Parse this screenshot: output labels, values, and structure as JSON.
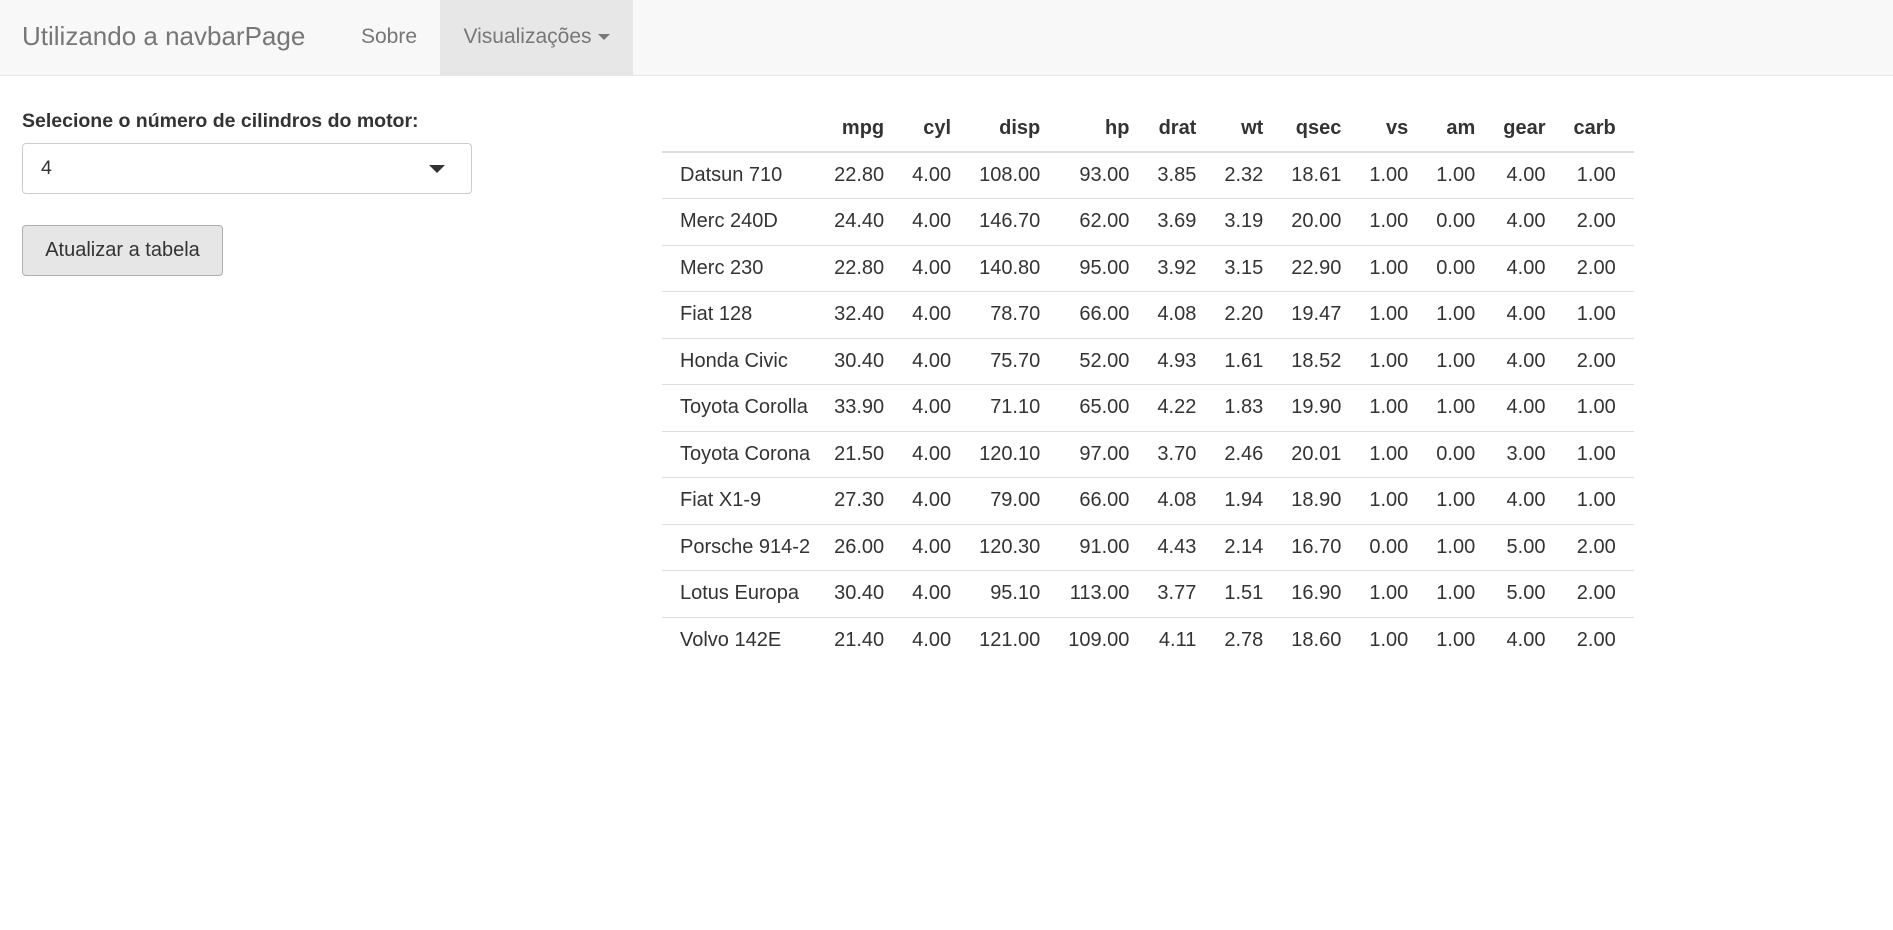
{
  "navbar": {
    "brand": "Utilizando a navbarPage",
    "items": [
      {
        "label": "Sobre"
      },
      {
        "label": "Visualizações"
      }
    ]
  },
  "sidebar": {
    "select_label": "Selecione o número de cilindros do motor:",
    "select_value": "4",
    "update_button": "Atualizar a tabela"
  },
  "table": {
    "columns": [
      "",
      "mpg",
      "cyl",
      "disp",
      "hp",
      "drat",
      "wt",
      "qsec",
      "vs",
      "am",
      "gear",
      "carb"
    ],
    "rows": [
      [
        "Datsun 710",
        "22.80",
        "4.00",
        "108.00",
        "93.00",
        "3.85",
        "2.32",
        "18.61",
        "1.00",
        "1.00",
        "4.00",
        "1.00"
      ],
      [
        "Merc 240D",
        "24.40",
        "4.00",
        "146.70",
        "62.00",
        "3.69",
        "3.19",
        "20.00",
        "1.00",
        "0.00",
        "4.00",
        "2.00"
      ],
      [
        "Merc 230",
        "22.80",
        "4.00",
        "140.80",
        "95.00",
        "3.92",
        "3.15",
        "22.90",
        "1.00",
        "0.00",
        "4.00",
        "2.00"
      ],
      [
        "Fiat 128",
        "32.40",
        "4.00",
        "78.70",
        "66.00",
        "4.08",
        "2.20",
        "19.47",
        "1.00",
        "1.00",
        "4.00",
        "1.00"
      ],
      [
        "Honda Civic",
        "30.40",
        "4.00",
        "75.70",
        "52.00",
        "4.93",
        "1.61",
        "18.52",
        "1.00",
        "1.00",
        "4.00",
        "2.00"
      ],
      [
        "Toyota Corolla",
        "33.90",
        "4.00",
        "71.10",
        "65.00",
        "4.22",
        "1.83",
        "19.90",
        "1.00",
        "1.00",
        "4.00",
        "1.00"
      ],
      [
        "Toyota Corona",
        "21.50",
        "4.00",
        "120.10",
        "97.00",
        "3.70",
        "2.46",
        "20.01",
        "1.00",
        "0.00",
        "3.00",
        "1.00"
      ],
      [
        "Fiat X1-9",
        "27.30",
        "4.00",
        "79.00",
        "66.00",
        "4.08",
        "1.94",
        "18.90",
        "1.00",
        "1.00",
        "4.00",
        "1.00"
      ],
      [
        "Porsche 914-2",
        "26.00",
        "4.00",
        "120.30",
        "91.00",
        "4.43",
        "2.14",
        "16.70",
        "0.00",
        "1.00",
        "5.00",
        "2.00"
      ],
      [
        "Lotus Europa",
        "30.40",
        "4.00",
        "95.10",
        "113.00",
        "3.77",
        "1.51",
        "16.90",
        "1.00",
        "1.00",
        "5.00",
        "2.00"
      ],
      [
        "Volvo 142E",
        "21.40",
        "4.00",
        "121.00",
        "109.00",
        "4.11",
        "2.78",
        "18.60",
        "1.00",
        "1.00",
        "4.00",
        "2.00"
      ]
    ]
  }
}
